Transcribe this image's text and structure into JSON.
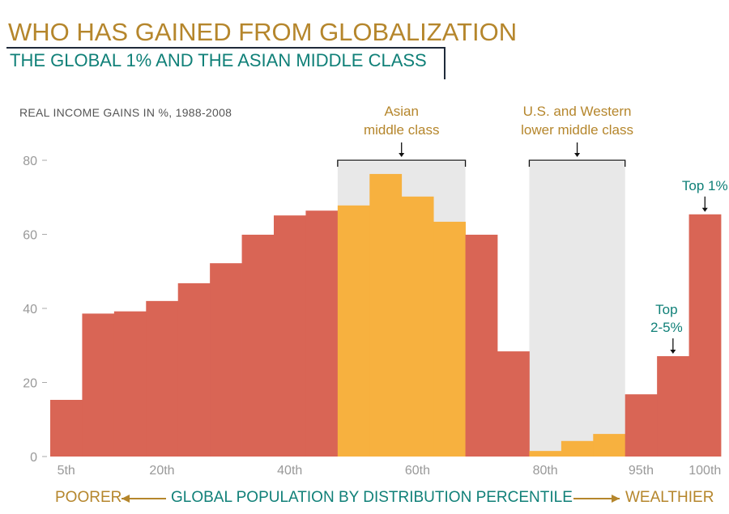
{
  "title": "WHO HAS GAINED FROM GLOBALIZATION",
  "subtitle": "THE GLOBAL 1% AND THE ASIAN MIDDLE CLASS",
  "chart_data": {
    "type": "bar",
    "ylabel": "REAL INCOME GAINS IN %, 1988-2008",
    "xlabel": "GLOBAL POPULATION BY DISTRIBUTION PERCENTILE",
    "x_left_label": "POORER",
    "x_right_label": "WEALTHIER",
    "ylim": [
      0,
      80
    ],
    "yticks": [
      0,
      20,
      40,
      60,
      80
    ],
    "categories": [
      5,
      10,
      15,
      20,
      25,
      30,
      35,
      40,
      45,
      50,
      55,
      60,
      65,
      70,
      75,
      80,
      85,
      90,
      95,
      99,
      100
    ],
    "xtick_labels": [
      {
        "percentile": 5,
        "label": "5th"
      },
      {
        "percentile": 20,
        "label": "20th"
      },
      {
        "percentile": 40,
        "label": "40th"
      },
      {
        "percentile": 60,
        "label": "60th"
      },
      {
        "percentile": 80,
        "label": "80th"
      },
      {
        "percentile": 95,
        "label": "95th"
      },
      {
        "percentile": 100,
        "label": "100th"
      }
    ],
    "values": [
      15.3,
      38.6,
      39.2,
      42.0,
      46.8,
      52.2,
      59.9,
      65.1,
      66.4,
      67.8,
      76.3,
      70.2,
      63.4,
      59.9,
      28.4,
      1.5,
      4.2,
      6.1,
      16.8,
      27.1,
      65.4
    ],
    "highlighted": [
      false,
      false,
      false,
      false,
      false,
      false,
      false,
      false,
      false,
      true,
      true,
      true,
      true,
      false,
      false,
      true,
      true,
      true,
      false,
      false,
      false
    ],
    "colors": {
      "default": "#d96555",
      "highlight": "#f7b13f",
      "band": "#e8e8e8",
      "title": "#b5862c",
      "teal": "#108078"
    },
    "annotations": [
      {
        "text": "Asian middle class",
        "lines": [
          "Asian",
          "middle class"
        ],
        "from": 50,
        "to": 65,
        "color": "#b5862c",
        "band": true
      },
      {
        "text": "U.S. and Western lower middle class",
        "lines": [
          "U.S. and Western",
          "lower middle class"
        ],
        "from": 80,
        "to": 90,
        "color": "#b5862c",
        "band": true
      },
      {
        "text": "Top 2-5%",
        "lines": [
          "Top",
          "2-5%"
        ],
        "from": 99,
        "to": 99,
        "color": "#108078",
        "band": false
      },
      {
        "text": "Top 1%",
        "lines": [
          "Top 1%"
        ],
        "from": 100,
        "to": 100,
        "color": "#108078",
        "band": false
      }
    ]
  }
}
